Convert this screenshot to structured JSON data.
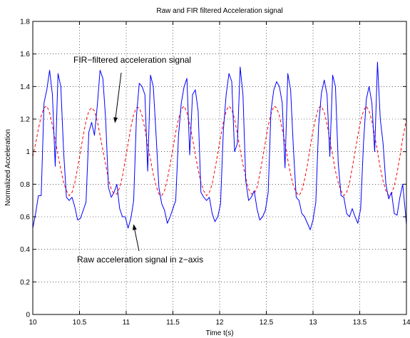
{
  "chart_data": {
    "type": "line",
    "title": "Raw and FIR filtered Acceleration signal",
    "xlabel": "Time t(s)",
    "ylabel": "Normalized Acceleration",
    "xlim": [
      10,
      14
    ],
    "ylim": [
      0,
      1.8
    ],
    "xticks": [
      "10",
      "10.5",
      "11",
      "11.5",
      "12",
      "12.5",
      "13",
      "13.5",
      "14"
    ],
    "yticks": [
      "0",
      "0.2",
      "0.4",
      "0.6",
      "0.8",
      "1",
      "1.2",
      "1.4",
      "1.6",
      "1.8"
    ],
    "grid": true,
    "series": [
      {
        "name": "Raw acceleration signal in z−axis",
        "color": "#0000ff",
        "style": "solid",
        "x": [
          10.0,
          10.03,
          10.06,
          10.09,
          10.12,
          10.15,
          10.18,
          10.21,
          10.24,
          10.27,
          10.3,
          10.33,
          10.36,
          10.39,
          10.42,
          10.45,
          10.48,
          10.51,
          10.54,
          10.57,
          10.6,
          10.63,
          10.66,
          10.69,
          10.72,
          10.75,
          10.78,
          10.81,
          10.84,
          10.87,
          10.9,
          10.93,
          10.96,
          10.99,
          11.02,
          11.05,
          11.08,
          11.11,
          11.14,
          11.17,
          11.2,
          11.23,
          11.26,
          11.29,
          11.32,
          11.35,
          11.38,
          11.41,
          11.44,
          11.47,
          11.5,
          11.53,
          11.56,
          11.59,
          11.62,
          11.65,
          11.68,
          11.71,
          11.74,
          11.77,
          11.8,
          11.83,
          11.86,
          11.89,
          11.92,
          11.95,
          11.98,
          12.01,
          12.04,
          12.07,
          12.1,
          12.13,
          12.16,
          12.19,
          12.22,
          12.25,
          12.28,
          12.31,
          12.34,
          12.37,
          12.4,
          12.43,
          12.46,
          12.49,
          12.52,
          12.55,
          12.58,
          12.61,
          12.64,
          12.67,
          12.7,
          12.73,
          12.76,
          12.79,
          12.82,
          12.85,
          12.88,
          12.91,
          12.94,
          12.97,
          13.0,
          13.03,
          13.06,
          13.09,
          13.12,
          13.15,
          13.18,
          13.21,
          13.24,
          13.27,
          13.3,
          13.33,
          13.36,
          13.39,
          13.42,
          13.45,
          13.48,
          13.51,
          13.54,
          13.57,
          13.6,
          13.63,
          13.66,
          13.69,
          13.72,
          13.75,
          13.78,
          13.81,
          13.84,
          13.87,
          13.9,
          13.93,
          13.96,
          13.99,
          14.0
        ],
        "values": [
          0.53,
          0.62,
          0.73,
          0.73,
          1.3,
          1.38,
          1.5,
          1.35,
          0.91,
          1.48,
          1.4,
          1.0,
          0.72,
          0.7,
          0.72,
          0.66,
          0.58,
          0.59,
          0.64,
          0.69,
          1.12,
          1.18,
          1.1,
          1.28,
          1.5,
          1.45,
          1.2,
          0.78,
          0.72,
          0.75,
          0.8,
          0.65,
          0.6,
          0.6,
          0.53,
          0.59,
          0.7,
          1.22,
          1.42,
          1.4,
          1.35,
          0.88,
          1.47,
          1.4,
          1.1,
          0.78,
          0.68,
          0.64,
          0.56,
          0.6,
          0.65,
          0.7,
          1.1,
          1.3,
          1.4,
          1.45,
          0.98,
          1.35,
          1.38,
          1.25,
          0.75,
          0.72,
          0.7,
          0.72,
          0.62,
          0.57,
          0.6,
          0.68,
          1.13,
          1.35,
          1.48,
          1.43,
          1.0,
          1.05,
          1.52,
          1.35,
          0.82,
          0.7,
          0.72,
          0.76,
          0.65,
          0.58,
          0.6,
          0.64,
          0.75,
          1.25,
          1.38,
          1.43,
          1.4,
          1.3,
          0.9,
          1.48,
          1.38,
          1.02,
          0.72,
          0.7,
          0.62,
          0.6,
          0.56,
          0.52,
          0.58,
          0.69,
          1.16,
          1.36,
          1.44,
          1.35,
          0.97,
          1.47,
          1.4,
          0.93,
          0.73,
          0.72,
          0.62,
          0.6,
          0.65,
          0.6,
          0.56,
          0.65,
          1.05,
          1.32,
          1.4,
          1.3,
          1.0,
          1.55,
          1.2,
          1.05,
          0.8,
          0.71,
          0.75,
          0.62,
          0.61,
          0.72,
          0.8,
          0.62,
          0.55
        ]
      },
      {
        "name": "FIR−filtered acceleration signal",
        "color": "#ff0000",
        "style": "dashed",
        "x": [
          10.0,
          10.03,
          10.06,
          10.09,
          10.12,
          10.15,
          10.18,
          10.21,
          10.24,
          10.27,
          10.3,
          10.33,
          10.36,
          10.39,
          10.42,
          10.45,
          10.48,
          10.51,
          10.54,
          10.57,
          10.6,
          10.63,
          10.66,
          10.69,
          10.72,
          10.75,
          10.78,
          10.81,
          10.84,
          10.87,
          10.9,
          10.93,
          10.96,
          10.99,
          11.02,
          11.05,
          11.08,
          11.11,
          11.14,
          11.17,
          11.2,
          11.23,
          11.26,
          11.29,
          11.32,
          11.35,
          11.38,
          11.41,
          11.44,
          11.47,
          11.5,
          11.53,
          11.56,
          11.59,
          11.62,
          11.65,
          11.68,
          11.71,
          11.74,
          11.77,
          11.8,
          11.83,
          11.86,
          11.89,
          11.92,
          11.95,
          11.98,
          12.01,
          12.04,
          12.07,
          12.1,
          12.13,
          12.16,
          12.19,
          12.22,
          12.25,
          12.28,
          12.31,
          12.34,
          12.37,
          12.4,
          12.43,
          12.46,
          12.49,
          12.52,
          12.55,
          12.58,
          12.61,
          12.64,
          12.67,
          12.7,
          12.73,
          12.76,
          12.79,
          12.82,
          12.85,
          12.88,
          12.91,
          12.94,
          12.97,
          13.0,
          13.03,
          13.06,
          13.09,
          13.12,
          13.15,
          13.18,
          13.21,
          13.24,
          13.27,
          13.3,
          13.33,
          13.36,
          13.39,
          13.42,
          13.45,
          13.48,
          13.51,
          13.54,
          13.57,
          13.6,
          13.63,
          13.66,
          13.69,
          13.72,
          13.75,
          13.78,
          13.81,
          13.84,
          13.87,
          13.9,
          13.93,
          13.96,
          13.99,
          14.0
        ],
        "values": [
          0.97,
          1.05,
          1.14,
          1.22,
          1.27,
          1.28,
          1.24,
          1.16,
          1.07,
          0.98,
          0.89,
          0.81,
          0.76,
          0.73,
          0.75,
          0.81,
          0.9,
          1.0,
          1.1,
          1.19,
          1.25,
          1.27,
          1.25,
          1.19,
          1.1,
          1.01,
          0.92,
          0.83,
          0.77,
          0.74,
          0.74,
          0.78,
          0.85,
          0.95,
          1.05,
          1.15,
          1.23,
          1.27,
          1.27,
          1.22,
          1.14,
          1.04,
          0.95,
          0.86,
          0.79,
          0.74,
          0.73,
          0.76,
          0.83,
          0.92,
          1.02,
          1.12,
          1.2,
          1.26,
          1.28,
          1.24,
          1.17,
          1.08,
          0.98,
          0.89,
          0.81,
          0.76,
          0.73,
          0.75,
          0.8,
          0.89,
          0.99,
          1.09,
          1.18,
          1.25,
          1.28,
          1.26,
          1.2,
          1.11,
          1.01,
          0.92,
          0.84,
          0.77,
          0.74,
          0.74,
          0.78,
          0.86,
          0.96,
          1.06,
          1.16,
          1.23,
          1.28,
          1.27,
          1.22,
          1.14,
          1.05,
          0.95,
          0.86,
          0.79,
          0.75,
          0.73,
          0.76,
          0.83,
          0.92,
          1.03,
          1.13,
          1.21,
          1.27,
          1.28,
          1.24,
          1.17,
          1.07,
          0.98,
          0.88,
          0.81,
          0.76,
          0.73,
          0.75,
          0.81,
          0.9,
          1.0,
          1.1,
          1.19,
          1.25,
          1.28,
          1.25,
          1.19,
          1.1,
          1.0,
          0.9,
          0.82,
          0.76,
          0.73,
          0.74,
          0.79,
          0.87,
          0.97,
          1.08,
          1.17,
          1.2
        ]
      }
    ],
    "annotations": [
      {
        "text": "FIR−filtered acceleration signal",
        "x": 10.88,
        "y": 1.18
      },
      {
        "text": "Raw acceleration signal in z−axis",
        "x": 11.08,
        "y": 0.55
      }
    ]
  }
}
